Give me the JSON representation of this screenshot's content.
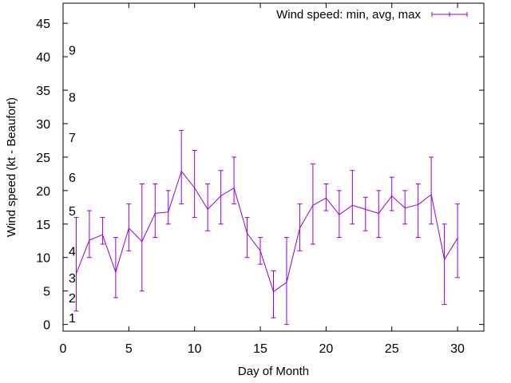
{
  "chart_data": {
    "type": "line",
    "xlabel": "Day of Month",
    "ylabel": "Wind speed (kt - Beaufort)",
    "xlim": [
      0,
      32
    ],
    "ylim": [
      -1,
      48
    ],
    "xticks": [
      0,
      5,
      10,
      15,
      20,
      25,
      30
    ],
    "yticks": [
      0,
      5,
      10,
      15,
      20,
      25,
      30,
      35,
      40,
      45
    ],
    "grid": false,
    "legend_position": "top-right",
    "series": [
      {
        "name": "Wind speed: min, avg, max",
        "color": "#9400d3",
        "style": "line-with-errorbars",
        "points": [
          {
            "x": 1,
            "avg": 7.6,
            "min": 2,
            "max": 16
          },
          {
            "x": 2,
            "avg": 12.6,
            "min": 10,
            "max": 17
          },
          {
            "x": 3,
            "avg": 13.4,
            "min": 12,
            "max": 16
          },
          {
            "x": 4,
            "avg": 7.8,
            "min": 4,
            "max": 13
          },
          {
            "x": 5,
            "avg": 14.4,
            "min": 11,
            "max": 18
          },
          {
            "x": 6,
            "avg": 12.4,
            "min": 5,
            "max": 21
          },
          {
            "x": 7,
            "avg": 16.6,
            "min": 13,
            "max": 21
          },
          {
            "x": 8,
            "avg": 16.8,
            "min": 15,
            "max": 20
          },
          {
            "x": 9,
            "avg": 22.9,
            "min": 18,
            "max": 29
          },
          {
            "x": 10,
            "avg": 20.4,
            "min": 16,
            "max": 26
          },
          {
            "x": 11,
            "avg": 17.2,
            "min": 14,
            "max": 21
          },
          {
            "x": 12,
            "avg": 19.2,
            "min": 15,
            "max": 23
          },
          {
            "x": 13,
            "avg": 20.4,
            "min": 18,
            "max": 25
          },
          {
            "x": 14,
            "avg": 13.6,
            "min": 10,
            "max": 16
          },
          {
            "x": 15,
            "avg": 11.0,
            "min": 9,
            "max": 13
          },
          {
            "x": 16,
            "avg": 4.9,
            "min": 1,
            "max": 8
          },
          {
            "x": 17,
            "avg": 6.3,
            "min": 0,
            "max": 13
          },
          {
            "x": 18,
            "avg": 14.4,
            "min": 11,
            "max": 18
          },
          {
            "x": 19,
            "avg": 17.8,
            "min": 12,
            "max": 24
          },
          {
            "x": 20,
            "avg": 18.9,
            "min": 17,
            "max": 21
          },
          {
            "x": 21,
            "avg": 16.4,
            "min": 13,
            "max": 20
          },
          {
            "x": 22,
            "avg": 17.8,
            "min": 15,
            "max": 23
          },
          {
            "x": 23,
            "avg": 17.2,
            "min": 14,
            "max": 19
          },
          {
            "x": 24,
            "avg": 16.6,
            "min": 13,
            "max": 20
          },
          {
            "x": 25,
            "avg": 19.2,
            "min": 17,
            "max": 22
          },
          {
            "x": 26,
            "avg": 17.4,
            "min": 15,
            "max": 20
          },
          {
            "x": 27,
            "avg": 17.9,
            "min": 13,
            "max": 21
          },
          {
            "x": 28,
            "avg": 19.4,
            "min": 15,
            "max": 25
          },
          {
            "x": 29,
            "avg": 9.7,
            "min": 3,
            "max": 15
          },
          {
            "x": 30,
            "avg": 12.9,
            "min": 7,
            "max": 18
          }
        ]
      }
    ],
    "annotations": [
      {
        "text": "1",
        "y": 1
      },
      {
        "text": "2",
        "y": 4
      },
      {
        "text": "3",
        "y": 7
      },
      {
        "text": "4",
        "y": 11
      },
      {
        "text": "5",
        "y": 17
      },
      {
        "text": "6",
        "y": 22
      },
      {
        "text": "7",
        "y": 28
      },
      {
        "text": "8",
        "y": 34
      },
      {
        "text": "9",
        "y": 41
      }
    ]
  }
}
